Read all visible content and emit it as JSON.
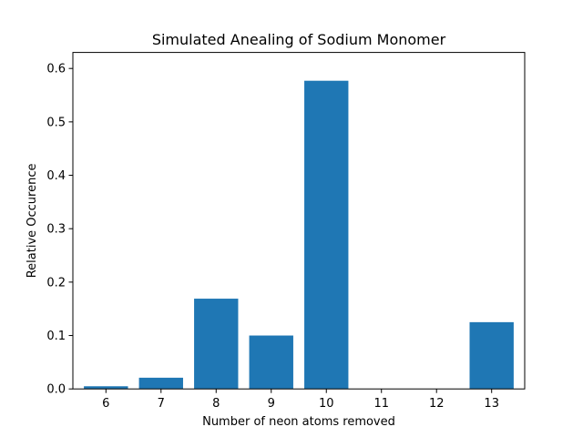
{
  "chart_data": {
    "type": "bar",
    "title": "Simulated Anealing of Sodium Monomer",
    "xlabel": "Number of neon atoms removed",
    "ylabel": "Relative Occurence",
    "categories": [
      "6",
      "7",
      "8",
      "9",
      "10",
      "11",
      "12",
      "13"
    ],
    "values": [
      0.005,
      0.021,
      0.169,
      0.1,
      0.577,
      0.0,
      0.0,
      0.125
    ],
    "ylim": [
      0,
      0.6
    ],
    "yticks": [
      "0.0",
      "0.1",
      "0.2",
      "0.3",
      "0.4",
      "0.5",
      "0.6"
    ],
    "grid": false,
    "bar_color": "#1f77b4"
  }
}
